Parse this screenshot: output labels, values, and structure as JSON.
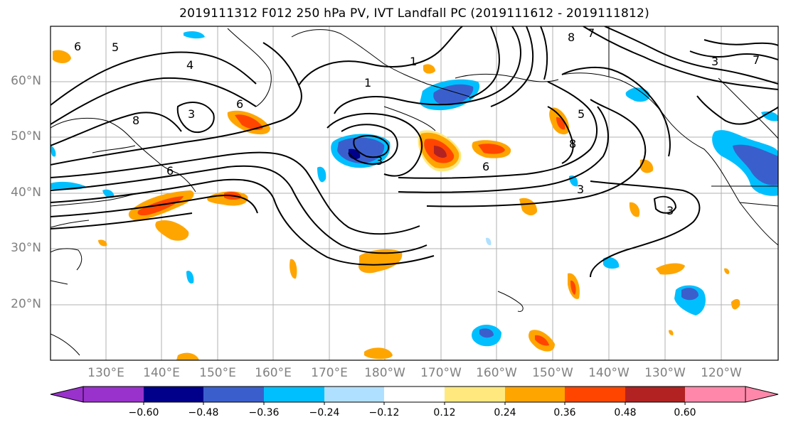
{
  "title": "2019111312 F012 250 hPa PV, IVT Landfall PC (2019111612 - 2019111812)",
  "lat_ticks": [
    "60°N",
    "50°N",
    "40°N",
    "30°N",
    "20°N"
  ],
  "lon_ticks": [
    "130°E",
    "140°E",
    "150°E",
    "160°E",
    "170°E",
    "180°W",
    "170°W",
    "160°W",
    "150°W",
    "140°W",
    "130°W",
    "120°W"
  ],
  "contour_labels": [
    "6",
    "5",
    "4",
    "8",
    "3",
    "1",
    "8",
    "7",
    "7",
    "6",
    "3",
    "6",
    "1",
    "3",
    "6",
    "8",
    "5",
    "3",
    "3"
  ],
  "colorbar": {
    "ticks": [
      "−0.60",
      "−0.48",
      "−0.36",
      "−0.24",
      "−0.12",
      "0.12",
      "0.24",
      "0.36",
      "0.48",
      "0.60"
    ],
    "colors": [
      "#9932cc",
      "#00008b",
      "#3a5fcd",
      "#00bfff",
      "#b0e0ff",
      "#ffffff",
      "#ffe97f",
      "#ffa500",
      "#ff4500",
      "#b22222",
      "#ff88aa"
    ]
  }
}
